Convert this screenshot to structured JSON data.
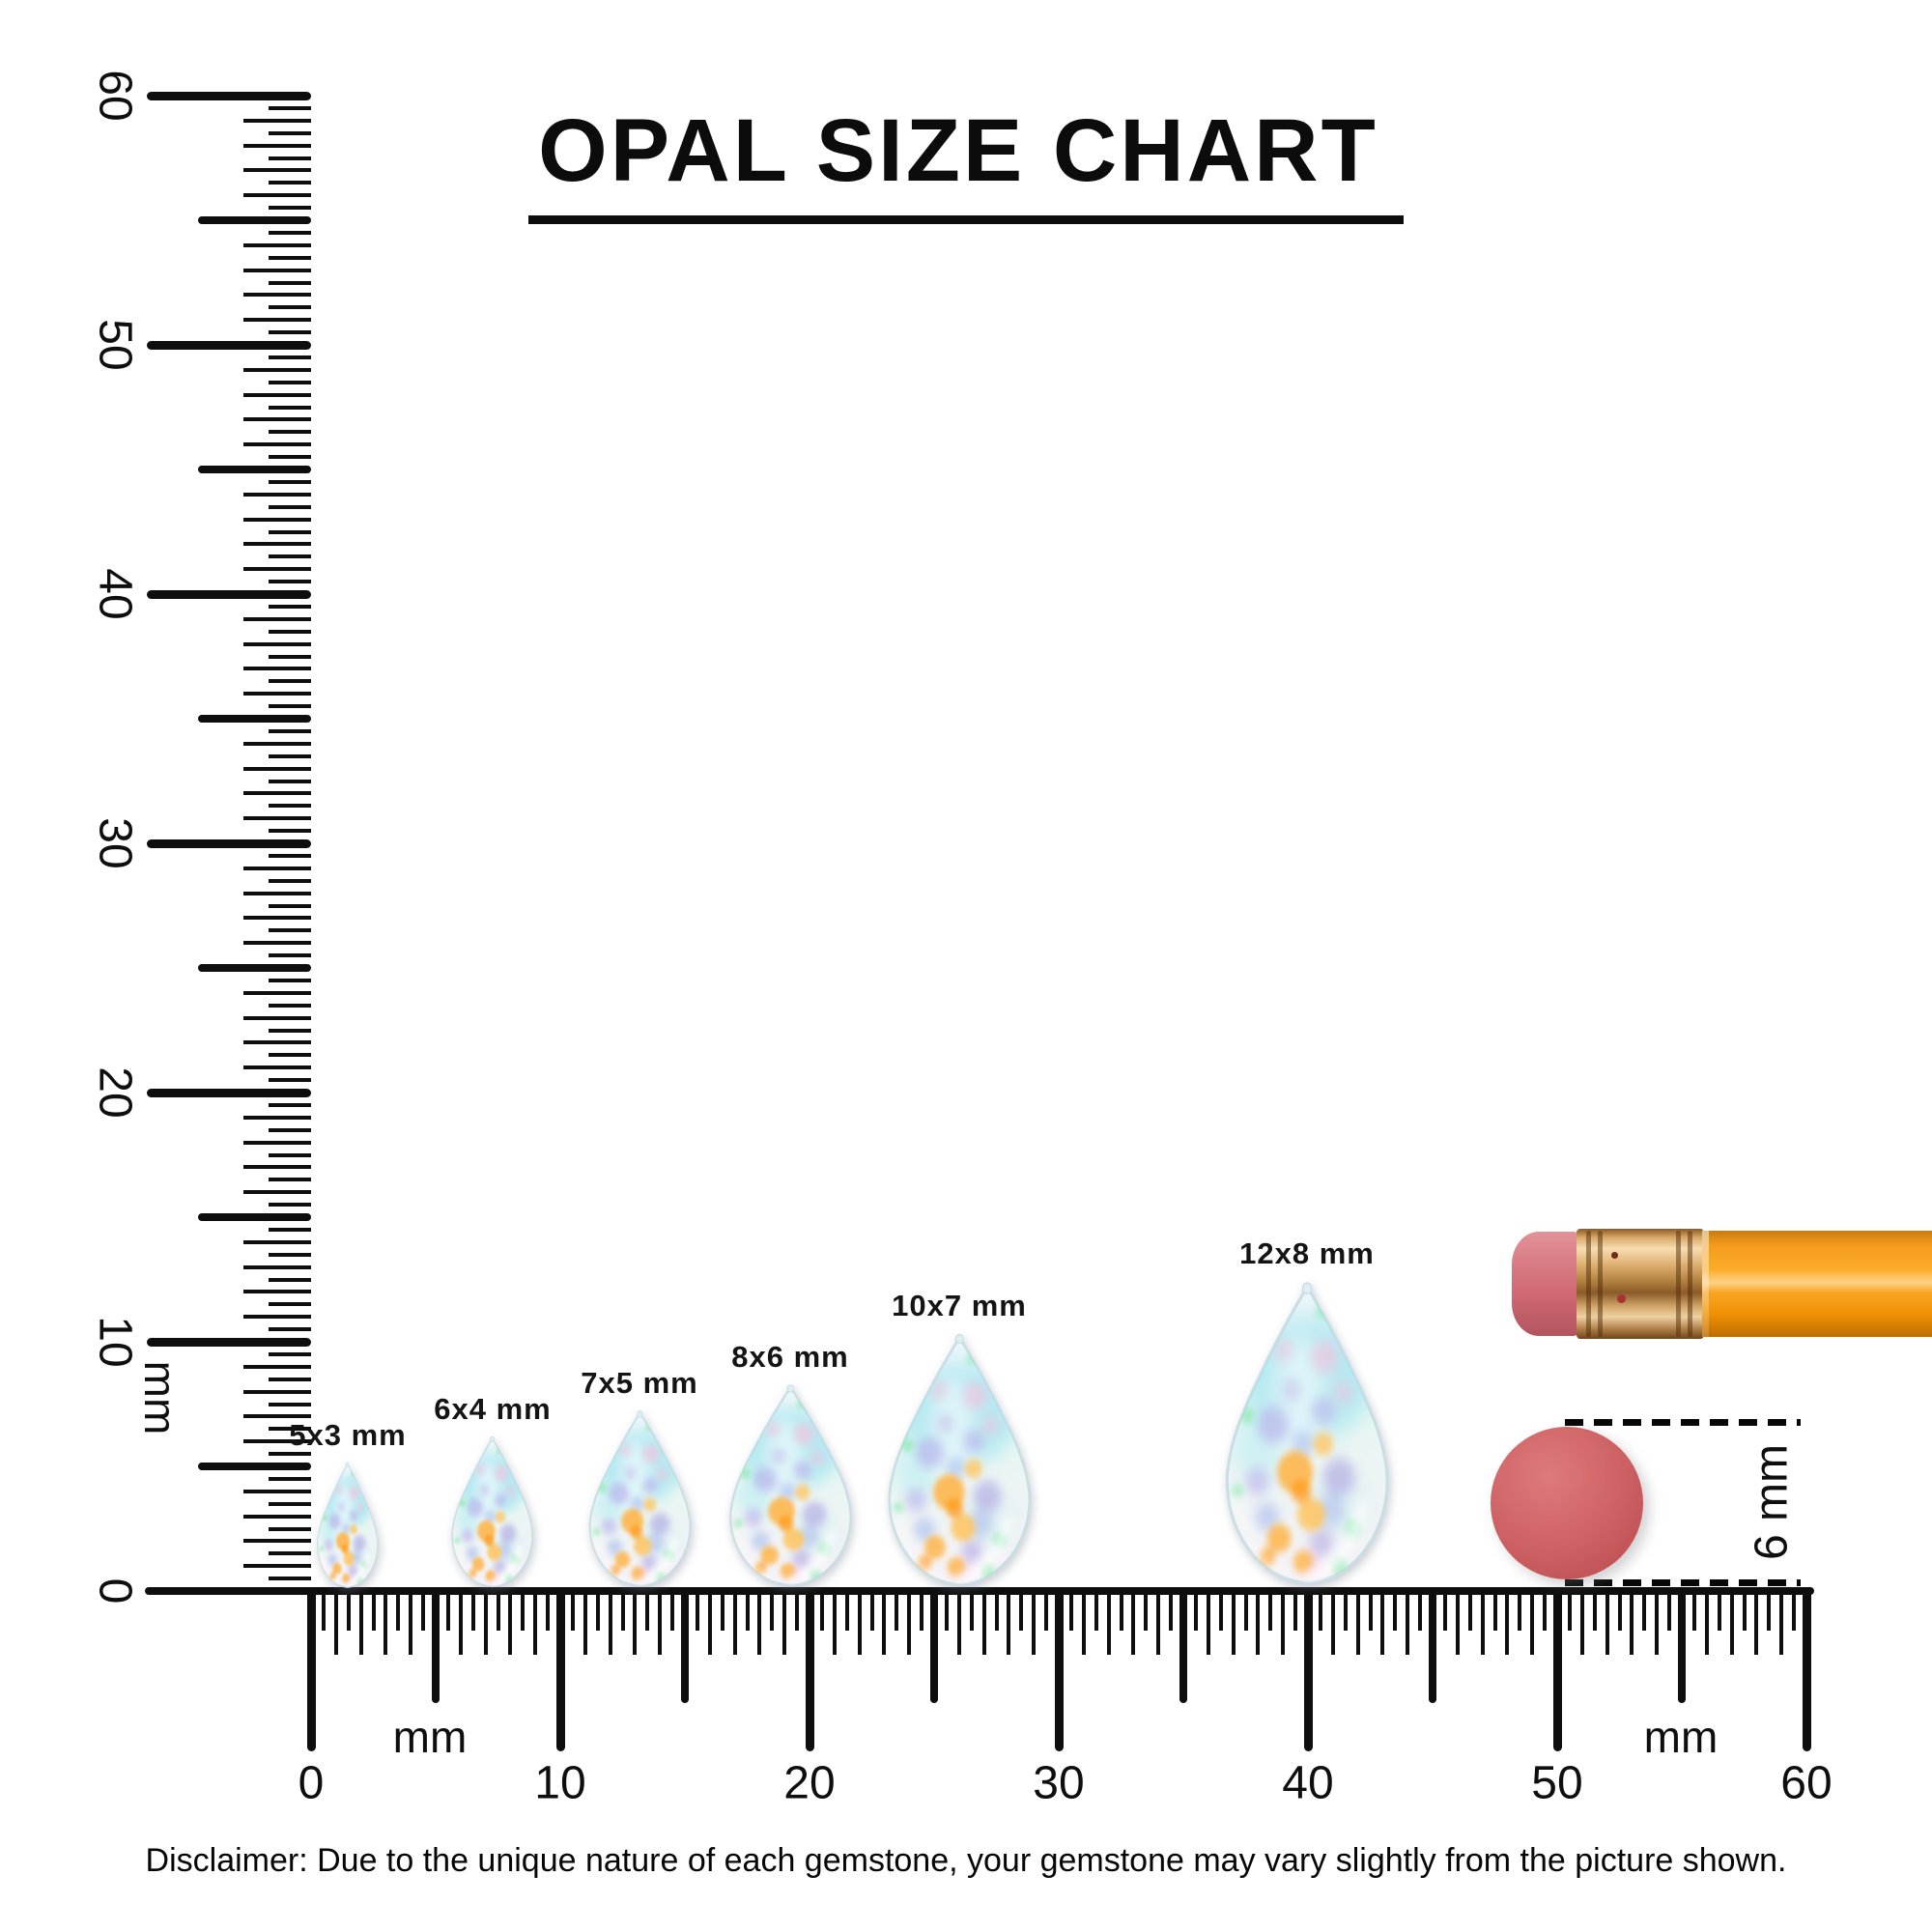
{
  "title": "OPAL SIZE CHART",
  "disclaimer": "Disclaimer: Due to the unique nature of each gemstone, your gemstone may vary slightly from the picture shown.",
  "rulers": {
    "unit": "mm",
    "vertical": {
      "min_mm": 0,
      "max_mm": 60,
      "minor_step_mm": 0.5,
      "number_labels": [
        "0",
        "10",
        "20",
        "30",
        "40",
        "50",
        "60"
      ],
      "unit_label": "mm"
    },
    "horizontal": {
      "min_mm": 0,
      "max_mm": 60,
      "minor_step_mm": 0.5,
      "number_labels": [
        "0",
        "10",
        "20",
        "30",
        "40",
        "50",
        "60"
      ],
      "unit_labels": [
        "mm",
        "mm"
      ]
    }
  },
  "gems": [
    {
      "label": "5x3 mm",
      "height_mm": 5,
      "width_mm": 3
    },
    {
      "label": "6x4 mm",
      "height_mm": 6,
      "width_mm": 4
    },
    {
      "label": "7x5 mm",
      "height_mm": 7,
      "width_mm": 5
    },
    {
      "label": "8x6 mm",
      "height_mm": 8,
      "width_mm": 6
    },
    {
      "label": "10x7 mm",
      "height_mm": 10,
      "width_mm": 7
    },
    {
      "label": "12x8 mm",
      "height_mm": 12,
      "width_mm": 8
    }
  ],
  "reference_objects": {
    "circle": {
      "label": "6 mm",
      "diameter_mm": 6,
      "color": "#cd5b5e"
    },
    "pencil": {
      "body_color": "#f59c1c",
      "eraser_color": "#d4737d",
      "ferrule_color": "#d3a060"
    }
  },
  "colors": {
    "ink": "#0e0e0e",
    "opal_base": "#eef7f8",
    "opal_cyan": "#a5e7ef",
    "opal_lavender": "#b4a6ea",
    "opal_orange": "#ffb23e",
    "opal_pink": "#f6bedd",
    "opal_mint": "#8ae8b0"
  }
}
